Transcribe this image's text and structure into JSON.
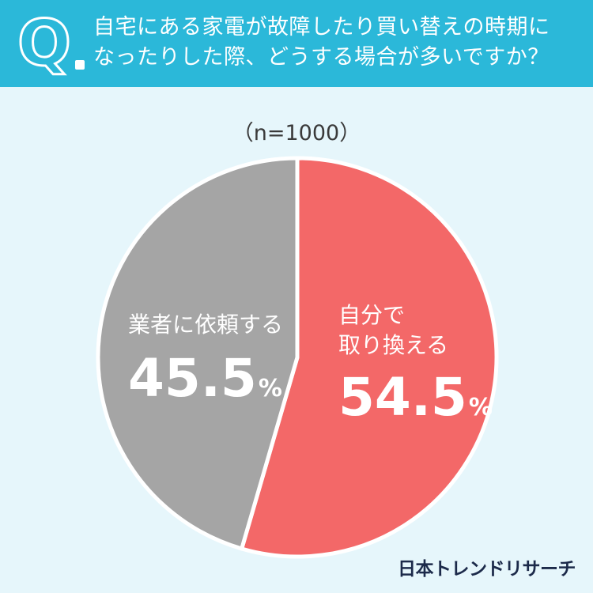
{
  "question": {
    "mark": "Q",
    "line1": "自宅にある家電が故障したり買い替えの時期に",
    "line2": "なったりした際、どうする場合が多いですか？"
  },
  "sample_size": "（n=1000）",
  "brand": "日本トレンドリサーチ",
  "chart_data": {
    "type": "pie",
    "title": "自宅にある家電が故障したり買い替えの時期になったりした際、どうする場合が多いですか？",
    "note": "（n=1000）",
    "slices": [
      {
        "label_line1": "自分で",
        "label_line2": "取り換える",
        "value": 54.5,
        "color": "#f36868",
        "value_text": "54.5",
        "unit": "%"
      },
      {
        "label_line1": "業者に依頼する",
        "label_line2": "",
        "value": 45.5,
        "color": "#a5a5a5",
        "value_text": "45.5",
        "unit": "%"
      }
    ]
  }
}
